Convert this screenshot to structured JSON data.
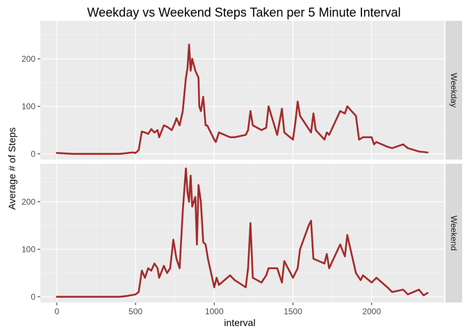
{
  "chart_data": {
    "type": "line",
    "title": "Weekday vs Weekend Steps Taken per 5 Minute Interval",
    "xlabel": "interval",
    "ylabel": "Average # of Steps",
    "xlim": [
      -105,
      2460
    ],
    "x_ticks": [
      0,
      500,
      1000,
      1500,
      2000
    ],
    "y_ticks": [
      0,
      100,
      200
    ],
    "grid": true,
    "line_color": "#a52a2a",
    "facets": [
      {
        "label": "Weekday",
        "ylim": [
          -12,
          280
        ],
        "series": [
          {
            "x": [
              0,
              100,
              200,
              300,
              400,
              480,
              500,
              520,
              540,
              560,
              580,
              600,
              620,
              640,
              650,
              680,
              700,
              730,
              750,
              760,
              780,
              800,
              820,
              830,
              840,
              850,
              860,
              880,
              900,
              905,
              915,
              930,
              945,
              955,
              1000,
              1010,
              1030,
              1100,
              1130,
              1200,
              1215,
              1230,
              1245,
              1300,
              1330,
              1345,
              1400,
              1430,
              1445,
              1500,
              1515,
              1530,
              1545,
              1615,
              1630,
              1645,
              1700,
              1715,
              1730,
              1800,
              1830,
              1845,
              1900,
              1920,
              1945,
              2000,
              2015,
              2030,
              2100,
              2130,
              2200,
              2230,
              2300,
              2355
            ],
            "y": [
              2,
              0,
              0,
              0,
              0,
              3,
              2,
              8,
              47,
              45,
              42,
              52,
              45,
              50,
              35,
              60,
              57,
              50,
              65,
              75,
              60,
              90,
              160,
              180,
              230,
              175,
              200,
              175,
              160,
              100,
              90,
              120,
              60,
              60,
              30,
              25,
              45,
              35,
              35,
              40,
              50,
              90,
              60,
              50,
              55,
              100,
              40,
              95,
              45,
              30,
              65,
              110,
              80,
              45,
              85,
              50,
              30,
              45,
              40,
              90,
              85,
              100,
              80,
              30,
              35,
              35,
              20,
              25,
              15,
              12,
              20,
              12,
              5,
              3
            ]
          }
        ]
      },
      {
        "label": "Weekend",
        "ylim": [
          -12,
          280
        ],
        "series": [
          {
            "x": [
              0,
              100,
              200,
              300,
              400,
              450,
              500,
              520,
              540,
              560,
              580,
              600,
              620,
              640,
              650,
              680,
              700,
              720,
              740,
              760,
              780,
              800,
              820,
              830,
              840,
              850,
              860,
              870,
              880,
              890,
              900,
              915,
              930,
              945,
              960,
              1000,
              1015,
              1030,
              1100,
              1130,
              1200,
              1215,
              1230,
              1245,
              1300,
              1330,
              1345,
              1400,
              1430,
              1445,
              1500,
              1530,
              1545,
              1600,
              1615,
              1630,
              1700,
              1715,
              1730,
              1800,
              1830,
              1845,
              1900,
              1930,
              1945,
              2000,
              2030,
              2100,
              2130,
              2200,
              2230,
              2300,
              2330,
              2355
            ],
            "y": [
              0,
              0,
              0,
              0,
              0,
              2,
              5,
              10,
              55,
              40,
              60,
              55,
              70,
              60,
              40,
              65,
              50,
              60,
              120,
              80,
              60,
              180,
              270,
              220,
              200,
              255,
              190,
              200,
              210,
              110,
              235,
              200,
              115,
              110,
              80,
              20,
              40,
              25,
              45,
              35,
              20,
              60,
              155,
              40,
              30,
              45,
              60,
              60,
              30,
              75,
              40,
              60,
              100,
              150,
              160,
              80,
              70,
              90,
              60,
              110,
              85,
              130,
              50,
              35,
              45,
              30,
              40,
              20,
              10,
              15,
              5,
              15,
              3,
              8
            ]
          }
        ]
      }
    ]
  }
}
